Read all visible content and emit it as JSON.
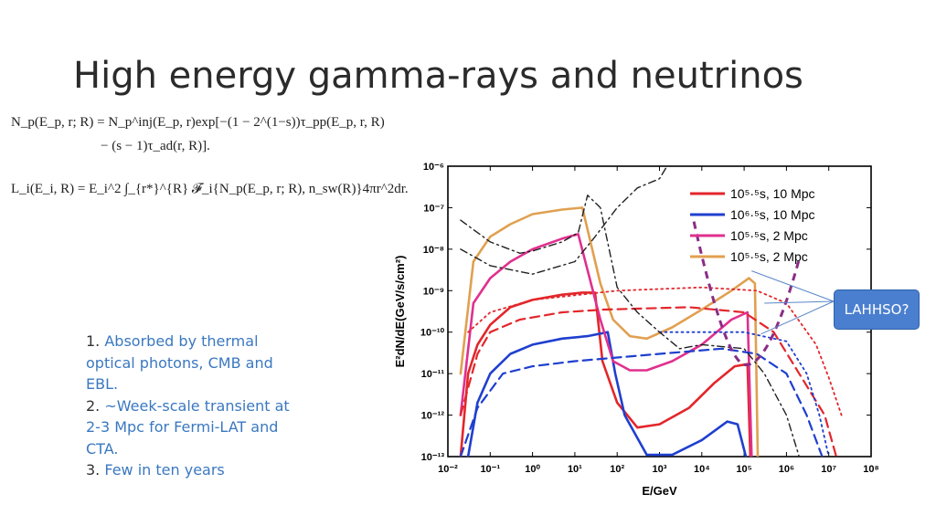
{
  "slide": {
    "title": "High energy gamma-rays and neutrinos",
    "equations": {
      "eq1": "N_p(E_p, r; R) = N_p^inj(E_p, r)exp[−(1 − 2^(1−s))τ_pp(E_p, r, R)",
      "eq2": "− (s − 1)τ_ad(r, R)].",
      "eq3": "L_i(E_i, R) = E_i^2 ∫_{r*}^{R} 𝓕_i{N_p(E_p, r; R), n_sw(R)}4πr^2dr."
    },
    "notes": [
      {
        "num": "1. ",
        "text": "Absorbed by thermal optical photons, CMB and EBL."
      },
      {
        "num": "2. ",
        "text": "~Week-scale transient at 2-3 Mpc for Fermi-LAT and CTA."
      },
      {
        "num": "3. ",
        "text": "Few in ten years"
      }
    ],
    "callout": "LAHHSO?"
  },
  "chart_data": {
    "type": "line",
    "xlabel": "E/GeV",
    "ylabel": "E²dN/dE(GeV/s/cm²)",
    "xscale": "log",
    "yscale": "log",
    "xlim": [
      0.01,
      100000000
    ],
    "ylim": [
      1e-13,
      1e-06
    ],
    "x_ticks": [
      "10⁻²",
      "10⁻¹",
      "10⁰",
      "10¹",
      "10²",
      "10³",
      "10⁴",
      "10⁵",
      "10⁶",
      "10⁷",
      "10⁸"
    ],
    "y_ticks": [
      "10⁻¹³",
      "10⁻¹²",
      "10⁻¹¹",
      "10⁻¹⁰",
      "10⁻⁹",
      "10⁻⁸",
      "10⁻⁷",
      "10⁻⁶"
    ],
    "legend": [
      {
        "label": "10⁵·⁵s, 10 Mpc",
        "color": "#e3262b"
      },
      {
        "label": "10⁶·⁵s, 10 Mpc",
        "color": "#1f3fcf"
      },
      {
        "label": "10⁵·⁵s, 2 Mpc",
        "color": "#e0308f"
      },
      {
        "label": "10⁵·⁵s, 2 Mpc",
        "color": "#e0a050"
      }
    ],
    "series": [
      {
        "color": "#e3262b",
        "style": "solid",
        "points": [
          [
            0.02,
            1e-13
          ],
          [
            0.03,
            1e-11
          ],
          [
            0.05,
            5e-11
          ],
          [
            0.1,
            1.5e-10
          ],
          [
            0.3,
            4e-10
          ],
          [
            1,
            6e-10
          ],
          [
            5,
            8e-10
          ],
          [
            15,
            9e-10
          ],
          [
            30,
            9e-10
          ],
          [
            45,
            2e-11
          ],
          [
            100,
            2e-12
          ],
          [
            300,
            5e-13
          ],
          [
            1000,
            6e-13
          ],
          [
            5000,
            1.5e-12
          ],
          [
            20000,
            6e-12
          ],
          [
            60000,
            1.5e-11
          ],
          [
            120000,
            1.7e-11
          ],
          [
            140000,
            1e-13
          ]
        ]
      },
      {
        "color": "#1f3fcf",
        "style": "solid",
        "points": [
          [
            0.03,
            1e-13
          ],
          [
            0.05,
            2e-12
          ],
          [
            0.1,
            1e-11
          ],
          [
            0.3,
            3e-11
          ],
          [
            1,
            5e-11
          ],
          [
            5,
            7e-11
          ],
          [
            20,
            8e-11
          ],
          [
            60,
            1e-10
          ],
          [
            90,
            1e-11
          ],
          [
            150,
            1e-12
          ],
          [
            500,
            1.1e-13
          ],
          [
            2000,
            1.1e-13
          ],
          [
            10000,
            2.5e-13
          ],
          [
            40000,
            7e-13
          ],
          [
            70000,
            6e-13
          ],
          [
            110000,
            1e-13
          ]
        ]
      },
      {
        "color": "#e0308f",
        "style": "solid",
        "points": [
          [
            0.02,
            1e-12
          ],
          [
            0.04,
            5e-10
          ],
          [
            0.1,
            2e-09
          ],
          [
            0.3,
            5e-09
          ],
          [
            1,
            1e-08
          ],
          [
            5,
            1.8e-08
          ],
          [
            12,
            2.3e-08
          ],
          [
            40,
            2e-10
          ],
          [
            80,
            2e-11
          ],
          [
            200,
            1.2e-11
          ],
          [
            500,
            1.2e-11
          ],
          [
            2000,
            2e-11
          ],
          [
            10000,
            5e-11
          ],
          [
            50000,
            2e-10
          ],
          [
            120000,
            3e-10
          ],
          [
            150000,
            1e-13
          ]
        ]
      },
      {
        "color": "#e0a050",
        "style": "solid",
        "points": [
          [
            0.02,
            1e-11
          ],
          [
            0.04,
            5e-09
          ],
          [
            0.1,
            2e-08
          ],
          [
            0.3,
            4e-08
          ],
          [
            1,
            7e-08
          ],
          [
            5,
            9e-08
          ],
          [
            15,
            1e-07
          ],
          [
            40,
            1.5e-09
          ],
          [
            80,
            2e-10
          ],
          [
            200,
            8e-11
          ],
          [
            500,
            7e-11
          ],
          [
            2000,
            1.3e-10
          ],
          [
            10000,
            3.5e-10
          ],
          [
            50000,
            1e-09
          ],
          [
            130000,
            2e-09
          ],
          [
            180000,
            1.5e-09
          ],
          [
            210000,
            1e-13
          ]
        ]
      },
      {
        "color": "#e3262b",
        "style": "dashed",
        "points": [
          [
            0.02,
            1e-12
          ],
          [
            0.05,
            3e-11
          ],
          [
            0.1,
            1e-10
          ],
          [
            0.5,
            2e-10
          ],
          [
            5,
            3e-10
          ],
          [
            50,
            3.5e-10
          ],
          [
            5000,
            4e-10
          ],
          [
            100000,
            3e-10
          ],
          [
            500000,
            1e-10
          ],
          [
            2000000,
            1e-11
          ],
          [
            8000000,
            1e-12
          ],
          [
            15000000,
            1e-13
          ]
        ]
      },
      {
        "color": "#1f3fcf",
        "style": "dashed",
        "points": [
          [
            0.02,
            1e-13
          ],
          [
            0.05,
            1.5e-12
          ],
          [
            0.2,
            1e-11
          ],
          [
            1,
            1.5e-11
          ],
          [
            10,
            2e-11
          ],
          [
            1000,
            3e-11
          ],
          [
            30000,
            4e-11
          ],
          [
            200000,
            3e-11
          ],
          [
            1000000,
            1e-11
          ],
          [
            3000000,
            1e-12
          ],
          [
            7000000,
            1e-13
          ]
        ]
      },
      {
        "color": "#e3262b",
        "style": "dotted",
        "points": [
          [
            0.03,
            1e-10
          ],
          [
            0.1,
            3e-10
          ],
          [
            1,
            6e-10
          ],
          [
            100,
            1e-09
          ],
          [
            10000,
            1.2e-09
          ],
          [
            200000,
            1e-09
          ],
          [
            1000000,
            5e-10
          ],
          [
            5000000,
            5e-11
          ],
          [
            10000000,
            8e-12
          ],
          [
            20000000,
            1e-12
          ]
        ]
      },
      {
        "color": "#1f3fcf",
        "style": "dotted",
        "points": [
          [
            1000,
            1e-10
          ],
          [
            10000,
            1e-10
          ],
          [
            100000,
            1e-10
          ],
          [
            1000000,
            6e-11
          ],
          [
            3000000,
            1e-11
          ],
          [
            6000000,
            1e-12
          ],
          [
            10000000,
            1e-13
          ]
        ]
      },
      {
        "color": "#222222",
        "style": "dashdot",
        "points": [
          [
            0.02,
            5e-08
          ],
          [
            0.1,
            1.5e-08
          ],
          [
            0.5,
            8e-09
          ],
          [
            1,
            9e-09
          ],
          [
            5,
            1.5e-08
          ],
          [
            12,
            2.5e-08
          ],
          [
            20,
            2e-07
          ],
          [
            40,
            1e-07
          ],
          [
            100,
            1.2e-09
          ],
          [
            300,
            3e-10
          ],
          [
            1000,
            1e-10
          ],
          [
            3000,
            4e-11
          ],
          [
            10000,
            5e-11
          ],
          [
            100000,
            4e-11
          ],
          [
            300000,
            1e-11
          ],
          [
            1000000,
            1e-12
          ],
          [
            2000000,
            1e-13
          ]
        ]
      },
      {
        "color": "#222222",
        "style": "dashdot",
        "points": [
          [
            0.02,
            1e-08
          ],
          [
            0.1,
            4e-09
          ],
          [
            1,
            2.5e-09
          ],
          [
            10,
            5e-09
          ],
          [
            30,
            2e-08
          ],
          [
            100,
            1e-07
          ],
          [
            300,
            3e-07
          ],
          [
            1000,
            5e-07
          ],
          [
            1500,
            1e-06
          ]
        ]
      }
    ],
    "annotations": [
      {
        "shape": "arc",
        "color": "#8a2d86",
        "center": [
          100000,
          2e-09
        ],
        "label": ""
      }
    ]
  }
}
